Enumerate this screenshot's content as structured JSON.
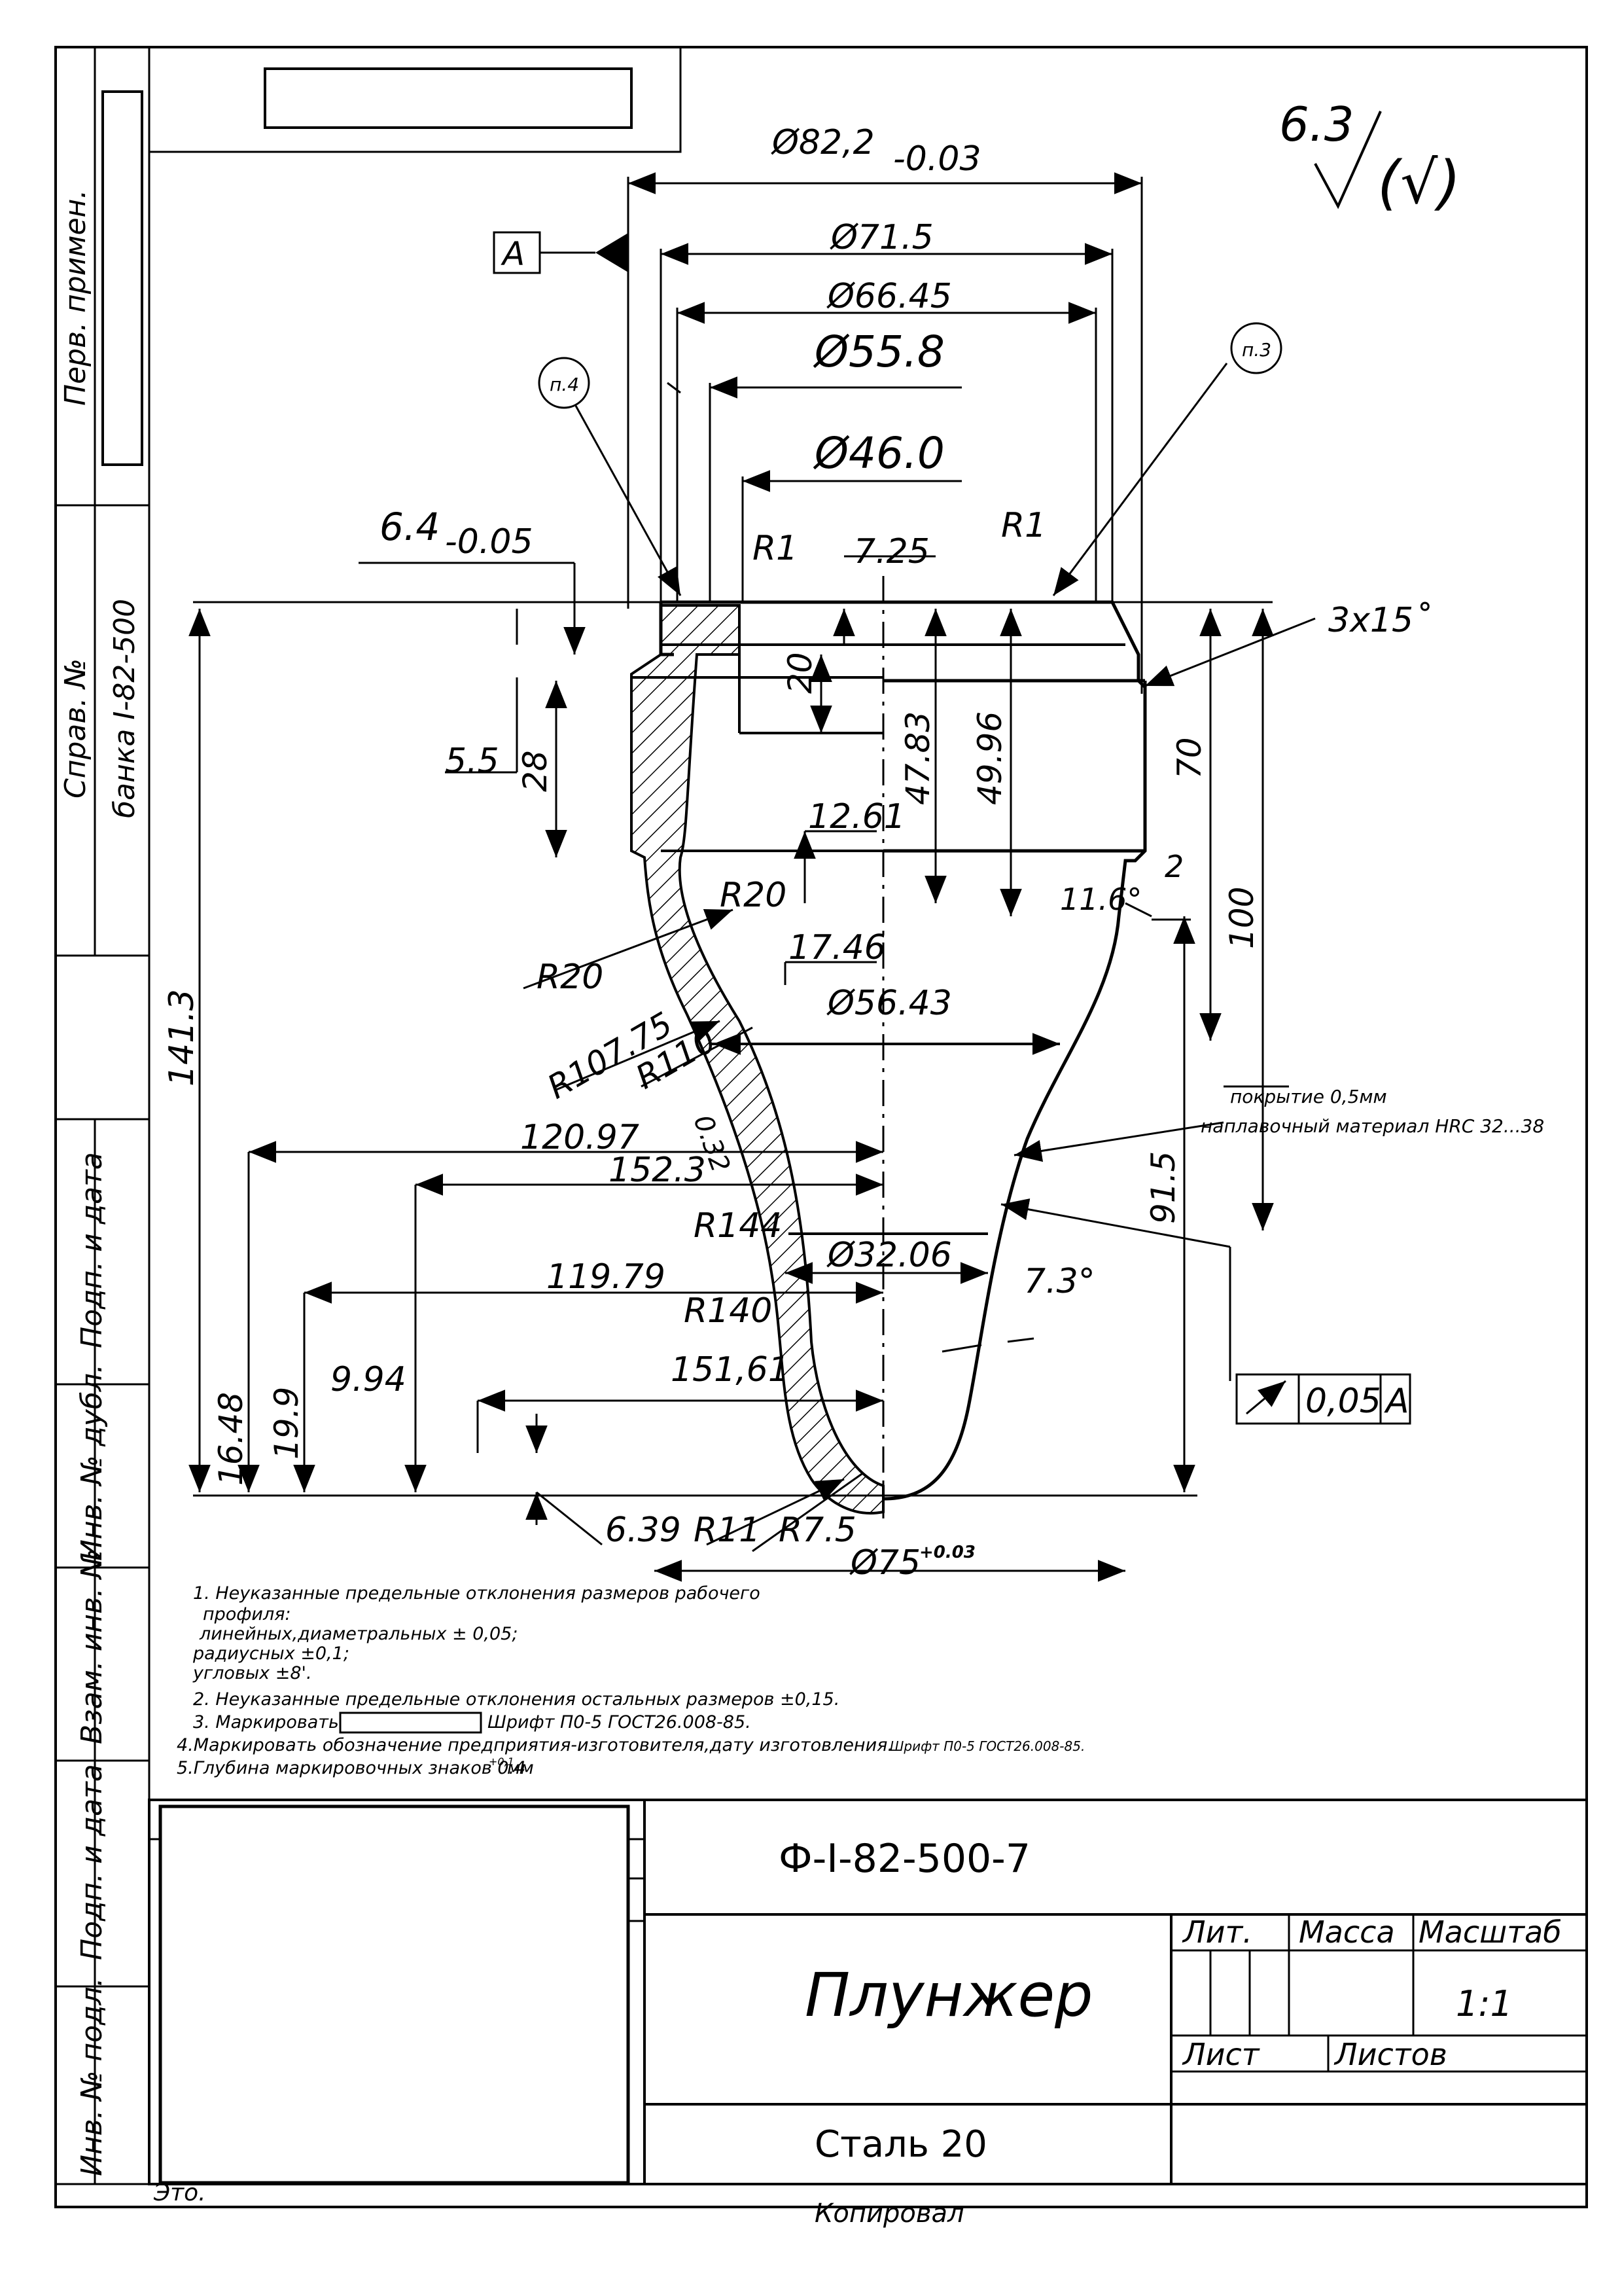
{
  "roughness": {
    "value": "6.3",
    "extra": "(√)"
  },
  "datum": {
    "letter": "A"
  },
  "dims": {
    "d82": "Ø82,2",
    "d82_tol": "-0.03",
    "d715": "Ø71.5",
    "d6645": "Ø66.45",
    "d558": "Ø55.8",
    "d460": "Ø46.0",
    "d5643": "Ø56.43",
    "d3206": "Ø32.06",
    "d75": "Ø75",
    "d75_tol": "+0.03",
    "h64": "6.4",
    "h64_tol": "-0.05",
    "r1a": "R1",
    "r1b": "R1",
    "h725": "7.25",
    "h20": "20",
    "h55": "5.5",
    "h28": "28",
    "h4783": "47.83",
    "h4996": "49.96",
    "h70": "70",
    "h100": "100",
    "h1413": "141.3",
    "chamfer": "3x15˚",
    "h1261": "12.61",
    "r20a": "R20",
    "r20b": "R20",
    "h1746": "17.46",
    "a116": "11.6°",
    "h2": "2",
    "r10775": "R107.75",
    "r110": "R110",
    "h032": "0.32",
    "h12097": "120.97",
    "h1523": "152.3",
    "r144": "R144",
    "h11979": "119.79",
    "a73": "7.3°",
    "r140": "R140",
    "h15161": "151,61",
    "h994": "9.94",
    "h1648": "16.48",
    "h199": "19.9",
    "h639": "6.39",
    "r11": "R11",
    "r75": "R7.5",
    "h915": "91.5"
  },
  "callouts": {
    "p4": "п.4",
    "p3": "п.3"
  },
  "coating": {
    "line1": "покрытие 0,5мм",
    "line2": "наплавочный материал HRC 32...38"
  },
  "tolerance": {
    "value": "0,05",
    "datum": "A"
  },
  "notes": [
    "1. Неуказанные предельные отклонения размеров рабочего",
    "профиля:",
    "линейных,диаметральных ± 0,05;",
    "радиусных ±0,1;",
    "угловых ±8'.",
    "2. Неуказанные предельные отклонения остальных размеров ±0,15.",
    "3. Маркировать",
    "Шрифт П0-5 ГОСТ26.008-85.",
    "4.Маркировать обозначение предприятия-изготовителя,дату изготовления.",
    "Шрифт П0-5 ГОСТ26.008-85.",
    "5.Глубина маркировочных знаков 0.4",
    "+0,1",
    "мм"
  ],
  "side": {
    "perv": "Перв. примен.",
    "sprav": "Справ. №",
    "bank": "банка I-82-500",
    "podp1": "Подп. и дата",
    "inv_dubl": "Инв. № дубл.",
    "vzam": "Взам. инв. №",
    "podp2": "Подп. и дата",
    "inv_podl": "Инв. № подл."
  },
  "titleblock": {
    "designation": "Ф-I-82-500-7",
    "name": "Плунжер",
    "material": "Сталь 20",
    "lit": "Лит.",
    "mass": "Масса",
    "scale_label": "Масштаб",
    "scale": "1:1",
    "sheet": "Лист",
    "sheets": "Листов",
    "stamp_partial": "Это."
  },
  "footer": {
    "copied": "Копировал"
  }
}
